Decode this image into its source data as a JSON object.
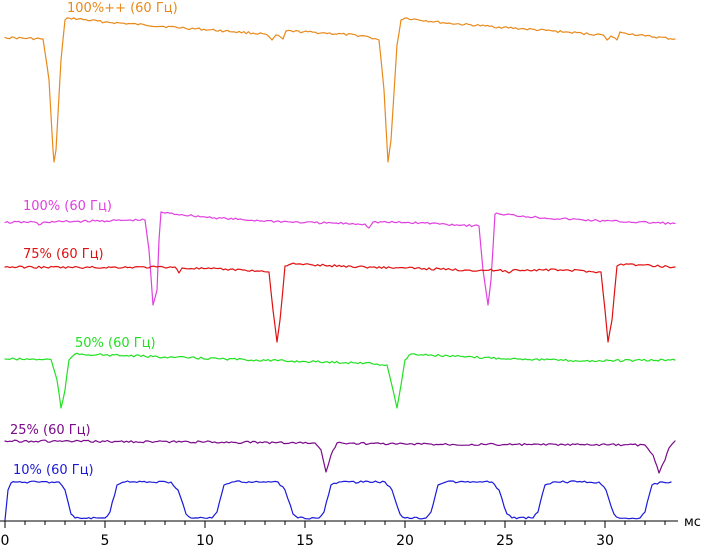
{
  "chart_data": {
    "type": "line",
    "xlabel": "",
    "x_unit_label": "мс",
    "xlim": [
      0,
      33.5
    ],
    "xticks": [
      0,
      5,
      10,
      15,
      20,
      25,
      30
    ],
    "grid": false,
    "legend": "inline labels above each trace",
    "series": [
      {
        "name": "100%++ (60 Гц)",
        "color": "#e8891a",
        "points": [
          [
            0,
            37.5
          ],
          [
            1.9,
            39
          ],
          [
            2.2,
            80
          ],
          [
            2.4,
            150
          ],
          [
            2.45,
            162
          ],
          [
            2.55,
            150
          ],
          [
            2.8,
            60
          ],
          [
            3.0,
            20
          ],
          [
            3.2,
            18
          ],
          [
            5,
            22
          ],
          [
            7,
            25
          ],
          [
            9,
            28
          ],
          [
            11,
            31
          ],
          [
            13,
            34
          ],
          [
            13.35,
            40
          ],
          [
            13.55,
            35
          ],
          [
            13.9,
            39
          ],
          [
            14.05,
            31
          ],
          [
            16,
            33
          ],
          [
            18,
            36
          ],
          [
            18.7,
            40
          ],
          [
            18.95,
            90
          ],
          [
            19.15,
            162
          ],
          [
            19.3,
            140
          ],
          [
            19.6,
            45
          ],
          [
            19.8,
            20
          ],
          [
            20,
            18
          ],
          [
            22,
            23
          ],
          [
            24,
            26
          ],
          [
            26,
            29
          ],
          [
            28,
            32
          ],
          [
            29.9,
            35
          ],
          [
            30.1,
            40
          ],
          [
            30.3,
            36
          ],
          [
            30.6,
            40
          ],
          [
            30.75,
            32
          ],
          [
            31,
            33
          ],
          [
            32,
            36
          ],
          [
            33.5,
            39
          ]
        ]
      },
      {
        "name": "100% (60 Гц)",
        "color": "#e040e0",
        "points": [
          [
            0,
            222.5
          ],
          [
            1.5,
            222
          ],
          [
            1.7,
            225
          ],
          [
            2,
            222
          ],
          [
            7,
            220
          ],
          [
            7.2,
            250
          ],
          [
            7.4,
            305
          ],
          [
            7.6,
            290
          ],
          [
            7.7,
            240
          ],
          [
            7.8,
            212
          ],
          [
            8,
            213
          ],
          [
            10,
            217
          ],
          [
            12,
            220
          ],
          [
            15,
            222.5
          ],
          [
            18,
            224
          ],
          [
            18.2,
            228
          ],
          [
            18.4,
            222
          ],
          [
            21,
            223
          ],
          [
            23.7,
            226
          ],
          [
            23.9,
            270
          ],
          [
            24.15,
            305
          ],
          [
            24.3,
            280
          ],
          [
            24.5,
            214
          ],
          [
            24.7,
            214
          ],
          [
            27,
            218
          ],
          [
            30,
            221
          ],
          [
            33.5,
            223.5
          ]
        ]
      },
      {
        "name": "75% (60 Гц)",
        "color": "#e01010",
        "points": [
          [
            0,
            267
          ],
          [
            4,
            267.5
          ],
          [
            8.5,
            267
          ],
          [
            8.7,
            273
          ],
          [
            8.85,
            268
          ],
          [
            12,
            270
          ],
          [
            13.2,
            272
          ],
          [
            13.4,
            310
          ],
          [
            13.6,
            342
          ],
          [
            13.75,
            320
          ],
          [
            14,
            266
          ],
          [
            14.3,
            264
          ],
          [
            16,
            265.5
          ],
          [
            18,
            267
          ],
          [
            20,
            268
          ],
          [
            23,
            270
          ],
          [
            25,
            270.5
          ],
          [
            25.2,
            273
          ],
          [
            25.4,
            270
          ],
          [
            28,
            270
          ],
          [
            29.8,
            272
          ],
          [
            30,
            310
          ],
          [
            30.15,
            342
          ],
          [
            30.35,
            320
          ],
          [
            30.6,
            266
          ],
          [
            30.8,
            264
          ],
          [
            33.5,
            267
          ]
        ]
      },
      {
        "name": "50% (60 Гц)",
        "color": "#22e022",
        "points": [
          [
            0,
            359
          ],
          [
            2.3,
            359.5
          ],
          [
            2.6,
            380
          ],
          [
            2.8,
            408
          ],
          [
            3.0,
            390
          ],
          [
            3.2,
            360
          ],
          [
            3.5,
            354
          ],
          [
            5,
            355
          ],
          [
            8,
            357
          ],
          [
            11,
            359
          ],
          [
            14,
            361
          ],
          [
            16,
            362
          ],
          [
            18,
            363
          ],
          [
            19.1,
            365
          ],
          [
            19.4,
            390
          ],
          [
            19.6,
            408
          ],
          [
            19.8,
            385
          ],
          [
            20.0,
            360
          ],
          [
            20.3,
            354
          ],
          [
            23,
            357
          ],
          [
            26,
            359
          ],
          [
            29,
            361
          ],
          [
            33.5,
            360
          ]
        ]
      },
      {
        "name": "25% (60 Гц)",
        "color": "#7a0a8a",
        "points": [
          [
            0,
            441
          ],
          [
            5,
            441.5
          ],
          [
            10,
            442
          ],
          [
            15.5,
            443
          ],
          [
            15.8,
            450
          ],
          [
            16.05,
            472
          ],
          [
            16.3,
            455
          ],
          [
            16.6,
            443
          ],
          [
            20,
            444
          ],
          [
            25,
            444.5
          ],
          [
            32,
            445
          ],
          [
            32.4,
            455
          ],
          [
            32.7,
            473
          ],
          [
            33.0,
            460
          ],
          [
            33.2,
            448
          ],
          [
            33.5,
            441
          ]
        ]
      },
      {
        "name": "10% (60 Гц)",
        "color": "#1a1ad8",
        "periodic": true,
        "period_ms": 5.35,
        "first_start_ms": 0.45,
        "low_y": 518,
        "high_y": 482,
        "x_end_ms": 33.3
      }
    ]
  }
}
